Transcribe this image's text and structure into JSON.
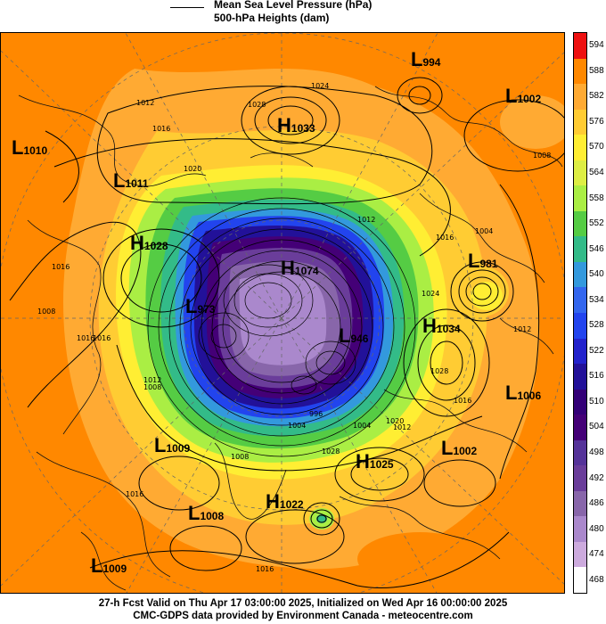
{
  "header": {
    "line1": "Mean Sea Level Pressure (hPa)",
    "line2": "500-hPa Heights (dam)"
  },
  "footer": {
    "valid_line": "27-h Fcst Valid on Thu Apr 17 03:00:00 2025, Initialized on Wed Apr 16 00:00:00 2025",
    "credit_line": "CMC-GDPS data provided by Environment Canada - meteocentre.com"
  },
  "colorbar": {
    "levels": [
      "594",
      "588",
      "582",
      "576",
      "570",
      "564",
      "558",
      "552",
      "546",
      "540",
      "534",
      "528",
      "522",
      "516",
      "510",
      "504",
      "498",
      "492",
      "486",
      "480",
      "474",
      "468"
    ],
    "colors": [
      "#ee1111",
      "#ff8800",
      "#ffaa33",
      "#ffcc33",
      "#ffee33",
      "#ddee44",
      "#aaee44",
      "#55cc44",
      "#33bb88",
      "#3399dd",
      "#3366ee",
      "#2244ee",
      "#2222cc",
      "#221199",
      "#330077",
      "#440077",
      "#553399",
      "#6a3d9a",
      "#8866aa",
      "#aa88cc",
      "#ccaadd",
      "#ffffff"
    ]
  },
  "pressure_systems": [
    {
      "type": "L",
      "value": "994"
    },
    {
      "type": "L",
      "value": "1002"
    },
    {
      "type": "L",
      "value": "1010"
    },
    {
      "type": "L",
      "value": "1011"
    },
    {
      "type": "H",
      "value": "1033"
    },
    {
      "type": "H",
      "value": "1028"
    },
    {
      "type": "H",
      "value": "1074"
    },
    {
      "type": "L",
      "value": "973"
    },
    {
      "type": "L",
      "value": "946"
    },
    {
      "type": "L",
      "value": "981"
    },
    {
      "type": "H",
      "value": "1034"
    },
    {
      "type": "L",
      "value": "1006"
    },
    {
      "type": "L",
      "value": "1009"
    },
    {
      "type": "H",
      "value": "1025"
    },
    {
      "type": "L",
      "value": "1002"
    },
    {
      "type": "H",
      "value": "1022"
    },
    {
      "type": "L",
      "value": "1008"
    },
    {
      "type": "L",
      "value": "1009"
    }
  ],
  "isobar_labels": [
    "1012",
    "1016",
    "1024",
    "1028",
    "1008",
    "1020",
    "1016",
    "1008",
    "1016",
    "1004",
    "1012",
    "1024",
    "1028",
    "1016",
    "1020",
    "1012",
    "1016",
    "1012",
    "1008",
    "1004",
    "1012",
    "1016",
    "1008",
    "1028",
    "1016",
    "996",
    "1004",
    "1016"
  ]
}
